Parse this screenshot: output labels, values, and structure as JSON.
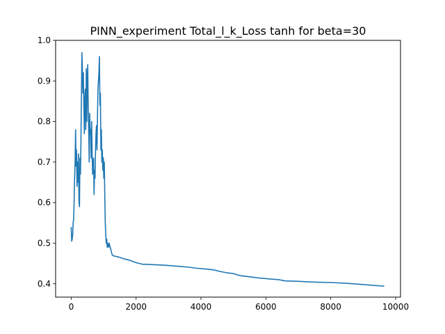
{
  "chart_data": {
    "type": "line",
    "title": "PINN_experiment Total_l_k_Loss tanh for beta=30",
    "xlabel": "",
    "ylabel": "",
    "xlim": [
      -480,
      10150
    ],
    "ylim": [
      0.367,
      1.0
    ],
    "x_ticks": [
      0,
      2000,
      4000,
      6000,
      8000,
      10000
    ],
    "x_tick_labels": [
      "0",
      "2000",
      "4000",
      "6000",
      "8000",
      "10000"
    ],
    "y_ticks": [
      0.4,
      0.5,
      0.6,
      0.7,
      0.8,
      0.9,
      1.0
    ],
    "y_tick_labels": [
      "0.4",
      "0.5",
      "0.6",
      "0.7",
      "0.8",
      "0.9",
      "1.0"
    ],
    "grid": false,
    "series": [
      {
        "color": "#1f77b4",
        "x": [
          0,
          15,
          30,
          45,
          60,
          75,
          90,
          105,
          120,
          135,
          150,
          165,
          180,
          195,
          210,
          225,
          240,
          255,
          270,
          285,
          300,
          315,
          330,
          345,
          360,
          375,
          390,
          405,
          420,
          435,
          450,
          465,
          480,
          495,
          510,
          525,
          540,
          555,
          570,
          585,
          600,
          615,
          630,
          645,
          660,
          675,
          690,
          705,
          720,
          735,
          750,
          765,
          780,
          795,
          810,
          825,
          840,
          855,
          870,
          885,
          900,
          915,
          930,
          945,
          960,
          975,
          990,
          1005,
          1020,
          1035,
          1050,
          1065,
          1080,
          1095,
          1110,
          1125,
          1140,
          1155,
          1170,
          1185,
          1200,
          1220,
          1240,
          1260,
          1280,
          1300,
          1330,
          1360,
          1400,
          1450,
          1500,
          1600,
          1700,
          1800,
          1900,
          2000,
          2100,
          2200,
          2300,
          2500,
          2800,
          3000,
          3300,
          3600,
          3900,
          4200,
          4400,
          4600,
          4800,
          5000,
          5200,
          5500,
          5800,
          6100,
          6400,
          6600,
          7000,
          7500,
          8000,
          8500,
          9000,
          9300,
          9650
        ],
        "y": [
          0.54,
          0.505,
          0.51,
          0.52,
          0.55,
          0.56,
          0.6,
          0.66,
          0.7,
          0.78,
          0.69,
          0.73,
          0.64,
          0.7,
          0.65,
          0.72,
          0.6,
          0.59,
          0.71,
          0.67,
          0.75,
          0.86,
          0.97,
          0.93,
          0.87,
          0.92,
          0.84,
          0.77,
          0.86,
          0.88,
          0.78,
          0.93,
          0.8,
          0.9,
          0.94,
          0.83,
          0.78,
          0.7,
          0.82,
          0.77,
          0.78,
          0.71,
          0.8,
          0.72,
          0.67,
          0.7,
          0.71,
          0.62,
          0.68,
          0.66,
          0.73,
          0.77,
          0.79,
          0.73,
          0.81,
          0.88,
          0.9,
          0.92,
          0.96,
          0.84,
          0.87,
          0.73,
          0.78,
          0.7,
          0.73,
          0.68,
          0.71,
          0.66,
          0.7,
          0.62,
          0.55,
          0.52,
          0.5,
          0.51,
          0.49,
          0.5,
          0.495,
          0.49,
          0.5,
          0.495,
          0.49,
          0.485,
          0.478,
          0.472,
          0.47,
          0.469,
          0.468,
          0.468,
          0.467,
          0.466,
          0.465,
          0.462,
          0.46,
          0.458,
          0.455,
          0.452,
          0.45,
          0.448,
          0.448,
          0.447,
          0.446,
          0.445,
          0.443,
          0.441,
          0.438,
          0.436,
          0.434,
          0.43,
          0.427,
          0.425,
          0.42,
          0.417,
          0.414,
          0.412,
          0.41,
          0.407,
          0.406,
          0.404,
          0.403,
          0.401,
          0.398,
          0.396,
          0.394
        ]
      }
    ]
  }
}
